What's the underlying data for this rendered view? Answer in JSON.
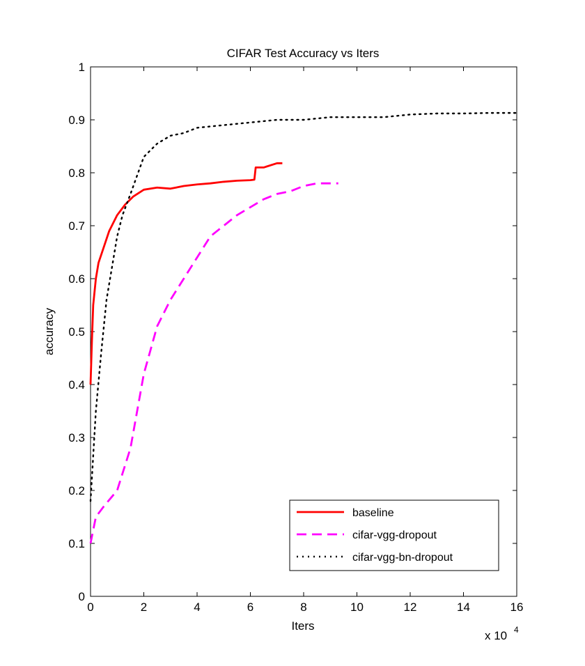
{
  "chart_data": {
    "type": "line",
    "title": "CIFAR Test Accuracy vs Iters",
    "xlabel": "Iters",
    "ylabel": "accuracy",
    "x_multiplier_label": "x 10",
    "x_multiplier_exponent": "4",
    "xlim": [
      0,
      16
    ],
    "ylim": [
      0,
      1
    ],
    "x_ticks": [
      0,
      2,
      4,
      6,
      8,
      10,
      12,
      14,
      16
    ],
    "x_tick_labels": [
      "0",
      "2",
      "4",
      "6",
      "8",
      "10",
      "12",
      "14",
      "16"
    ],
    "y_ticks": [
      0,
      0.1,
      0.2,
      0.3,
      0.4,
      0.5,
      0.6,
      0.7,
      0.8,
      0.9,
      1
    ],
    "y_tick_labels": [
      "0",
      "0.1",
      "0.2",
      "0.3",
      "0.4",
      "0.5",
      "0.6",
      "0.7",
      "0.8",
      "0.9",
      "1"
    ],
    "grid": false,
    "legend_position": "bottom-right",
    "series": [
      {
        "name": "baseline",
        "color": "#ff0000",
        "style": "solid",
        "points": [
          [
            0,
            0.4
          ],
          [
            0.05,
            0.48
          ],
          [
            0.1,
            0.55
          ],
          [
            0.2,
            0.6
          ],
          [
            0.3,
            0.63
          ],
          [
            0.5,
            0.66
          ],
          [
            0.7,
            0.69
          ],
          [
            1.0,
            0.72
          ],
          [
            1.3,
            0.74
          ],
          [
            1.6,
            0.755
          ],
          [
            2.0,
            0.768
          ],
          [
            2.5,
            0.772
          ],
          [
            3.0,
            0.77
          ],
          [
            3.5,
            0.775
          ],
          [
            4.0,
            0.778
          ],
          [
            4.5,
            0.78
          ],
          [
            5.0,
            0.783
          ],
          [
            5.5,
            0.785
          ],
          [
            6.0,
            0.786
          ],
          [
            6.15,
            0.787
          ],
          [
            6.2,
            0.81
          ],
          [
            6.5,
            0.81
          ],
          [
            7.0,
            0.818
          ],
          [
            7.2,
            0.818
          ]
        ]
      },
      {
        "name": "cifar-vgg-dropout",
        "color": "#ff00ff",
        "style": "dashed",
        "points": [
          [
            0,
            0.1
          ],
          [
            0.2,
            0.15
          ],
          [
            0.5,
            0.17
          ],
          [
            1.0,
            0.2
          ],
          [
            1.5,
            0.28
          ],
          [
            2.0,
            0.42
          ],
          [
            2.5,
            0.51
          ],
          [
            3.0,
            0.56
          ],
          [
            3.5,
            0.6
          ],
          [
            4.0,
            0.64
          ],
          [
            4.5,
            0.68
          ],
          [
            5.0,
            0.7
          ],
          [
            5.5,
            0.72
          ],
          [
            6.0,
            0.735
          ],
          [
            6.5,
            0.75
          ],
          [
            7.0,
            0.76
          ],
          [
            7.5,
            0.765
          ],
          [
            8.0,
            0.775
          ],
          [
            8.5,
            0.78
          ],
          [
            9.0,
            0.78
          ],
          [
            9.3,
            0.78
          ]
        ]
      },
      {
        "name": "cifar-vgg-bn-dropout",
        "color": "#000000",
        "style": "dotted",
        "points": [
          [
            0,
            0.18
          ],
          [
            0.2,
            0.35
          ],
          [
            0.4,
            0.46
          ],
          [
            0.6,
            0.56
          ],
          [
            0.8,
            0.62
          ],
          [
            1.0,
            0.68
          ],
          [
            1.2,
            0.72
          ],
          [
            1.5,
            0.76
          ],
          [
            2.0,
            0.83
          ],
          [
            2.5,
            0.855
          ],
          [
            3.0,
            0.87
          ],
          [
            3.5,
            0.875
          ],
          [
            4.0,
            0.885
          ],
          [
            5.0,
            0.89
          ],
          [
            6.0,
            0.895
          ],
          [
            7.0,
            0.9
          ],
          [
            8.0,
            0.9
          ],
          [
            9.0,
            0.905
          ],
          [
            10.0,
            0.905
          ],
          [
            11.0,
            0.905
          ],
          [
            12.0,
            0.91
          ],
          [
            13.0,
            0.912
          ],
          [
            14.0,
            0.912
          ],
          [
            15.0,
            0.913
          ],
          [
            16.0,
            0.913
          ]
        ]
      }
    ]
  }
}
